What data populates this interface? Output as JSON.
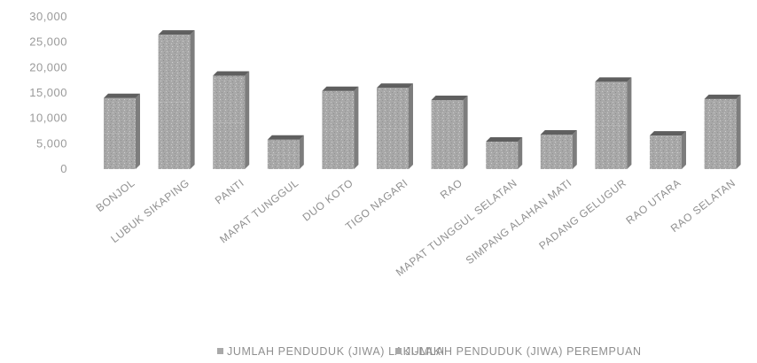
{
  "chart_data": {
    "type": "bar",
    "stacked": true,
    "categories": [
      "BONJOL",
      "LUBUK SIKAPING",
      "PANTI",
      "MAPAT TUNGGUL",
      "DUO KOTO",
      "TIGO NAGARI",
      "RAO",
      "MAPAT TUNGGUL SELATAN",
      "SIMPANG ALAHAN MATI",
      "PADANG GELUGUR",
      "RAO UTARA",
      "RAO SELATAN"
    ],
    "series": [
      {
        "name": "JUMLAH PENDUDUK (JIWA) LAKI-LAKI",
        "values": [
          7000,
          13200,
          9200,
          2900,
          7700,
          8000,
          6800,
          2700,
          3400,
          8600,
          3300,
          6900
        ]
      },
      {
        "name": "JUMLAH PENDUDUK (JIWA) PEREMPUAN",
        "values": [
          7000,
          13300,
          9200,
          2900,
          7700,
          8000,
          6800,
          2700,
          3400,
          8600,
          3300,
          6900
        ]
      }
    ],
    "yticks": [
      "30,000",
      "25,000",
      "20,000",
      "15,000",
      "10,000",
      "5,000",
      "0"
    ],
    "ylim": [
      0,
      30000
    ],
    "legend_position": "bottom",
    "grid": false
  },
  "colors": {
    "bar_face": "#a9a9a9",
    "bar_side": "#7d7d7d",
    "bar_top": "#5f5f5f",
    "text": "#9a9a9a"
  }
}
